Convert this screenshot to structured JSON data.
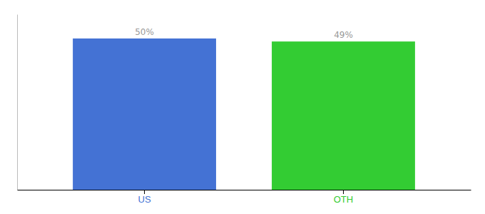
{
  "chart_data": {
    "type": "bar",
    "categories": [
      "US",
      "OTH"
    ],
    "values": [
      50,
      49
    ],
    "colors": [
      "#4472D4",
      "#33CC33"
    ],
    "value_labels": [
      "50%",
      "49%"
    ],
    "data_labels": true,
    "ylim": [
      0,
      58
    ],
    "tick_labels": "x",
    "grid": false
  }
}
